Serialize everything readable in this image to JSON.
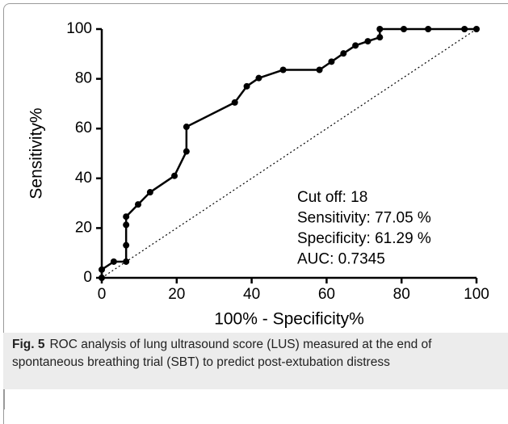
{
  "chart_data": {
    "type": "line",
    "xlabel": "100% - Specificity%",
    "ylabel": "Sensitivity%",
    "series": [
      {
        "name": "ROC",
        "color": "#000000",
        "x": [
          0,
          0,
          3.2,
          6.5,
          6.5,
          6.5,
          6.5,
          9.7,
          12.9,
          19.4,
          22.6,
          22.6,
          35.5,
          38.7,
          41.9,
          48.4,
          58.1,
          61.3,
          64.5,
          67.7,
          71.0,
          74.2,
          74.2,
          80.6,
          87.1,
          96.8,
          100
        ],
        "values": [
          0,
          3.3,
          6.5,
          6.5,
          13.1,
          21.3,
          24.6,
          29.5,
          34.4,
          41.0,
          50.8,
          60.7,
          70.5,
          77.0,
          80.3,
          83.6,
          83.6,
          86.9,
          90.2,
          93.4,
          95.1,
          96.7,
          100,
          100,
          100,
          100,
          100
        ]
      }
    ],
    "xlim": [
      0,
      100
    ],
    "xticks": [
      0,
      20,
      40,
      60,
      80,
      100
    ],
    "ylim": [
      0,
      100
    ],
    "yticks": [
      0,
      20,
      40,
      60,
      80,
      100
    ],
    "annotations": [
      "Cut off: 18",
      "Sensitivity: 77.05 %",
      "Specificity: 61.29 %",
      "AUC: 0.7345"
    ],
    "caption": {
      "label": "Fig. 5",
      "text": "ROC analysis of lung ultrasound score (LUS) measured at the end of spontaneous breathing trial (SBT) to predict post-extubation distress"
    }
  }
}
